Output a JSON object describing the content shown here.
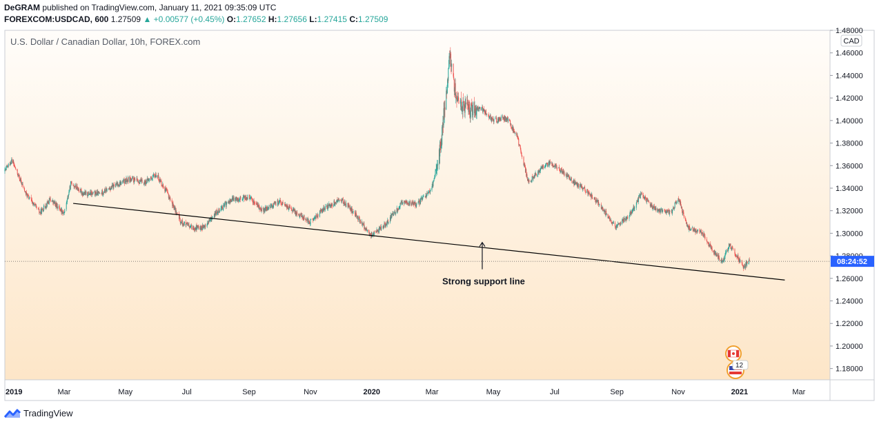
{
  "header": {
    "publisher": "DeGRAM",
    "publisher_suffix": "published on TradingView.com, January 11, 2021 09:35:09 UTC",
    "symbol": "FOREXCOM:USDCAD, 600",
    "last": "1.27509",
    "arrow": "▲",
    "change": "+0.00577 (+0.45%)",
    "o_label": "O:",
    "o": "1.27652",
    "h_label": "H:",
    "h": "1.27656",
    "l_label": "L:",
    "l": "1.27415",
    "c_label": "C:",
    "c": "1.27509"
  },
  "chart_data": {
    "type": "candlestick",
    "title": "U.S. Dollar / Canadian Dollar, 10h, FOREX.com",
    "currency_badge": "CAD",
    "x_ticks": [
      "2019",
      "Mar",
      "May",
      "Jul",
      "Sep",
      "Nov",
      "2020",
      "Mar",
      "May",
      "Jul",
      "Sep",
      "Nov",
      "2021",
      "Mar"
    ],
    "y_ticks": [
      "1.48000",
      "1.46000",
      "1.44000",
      "1.42000",
      "1.40000",
      "1.38000",
      "1.36000",
      "1.34000",
      "1.32000",
      "1.30000",
      "1.28000",
      "1.26000",
      "1.24000",
      "1.22000",
      "1.20000",
      "1.18000"
    ],
    "ylim": [
      1.17,
      1.48
    ],
    "x_domain": [
      "2019-01-01",
      "2021-04-01"
    ],
    "price_path": [
      [
        "2019-01-01",
        1.355
      ],
      [
        "2019-01-08",
        1.365
      ],
      [
        "2019-01-22",
        1.335
      ],
      [
        "2019-02-05",
        1.318
      ],
      [
        "2019-02-15",
        1.33
      ],
      [
        "2019-03-01",
        1.318
      ],
      [
        "2019-03-08",
        1.345
      ],
      [
        "2019-03-20",
        1.335
      ],
      [
        "2019-04-05",
        1.335
      ],
      [
        "2019-04-20",
        1.342
      ],
      [
        "2019-05-05",
        1.348
      ],
      [
        "2019-05-20",
        1.345
      ],
      [
        "2019-06-01",
        1.352
      ],
      [
        "2019-06-12",
        1.335
      ],
      [
        "2019-06-25",
        1.31
      ],
      [
        "2019-07-05",
        1.305
      ],
      [
        "2019-07-18",
        1.305
      ],
      [
        "2019-08-01",
        1.32
      ],
      [
        "2019-08-15",
        1.33
      ],
      [
        "2019-09-01",
        1.332
      ],
      [
        "2019-09-15",
        1.32
      ],
      [
        "2019-10-01",
        1.328
      ],
      [
        "2019-10-15",
        1.32
      ],
      [
        "2019-11-01",
        1.31
      ],
      [
        "2019-11-15",
        1.322
      ],
      [
        "2019-12-01",
        1.33
      ],
      [
        "2019-12-15",
        1.318
      ],
      [
        "2019-12-31",
        1.298
      ],
      [
        "2020-01-15",
        1.308
      ],
      [
        "2020-02-01",
        1.328
      ],
      [
        "2020-02-15",
        1.325
      ],
      [
        "2020-03-01",
        1.34
      ],
      [
        "2020-03-10",
        1.38
      ],
      [
        "2020-03-19",
        1.46
      ],
      [
        "2020-03-25",
        1.42
      ],
      [
        "2020-04-05",
        1.41
      ],
      [
        "2020-04-20",
        1.41
      ],
      [
        "2020-05-01",
        1.4
      ],
      [
        "2020-05-15",
        1.402
      ],
      [
        "2020-05-25",
        1.385
      ],
      [
        "2020-06-05",
        1.345
      ],
      [
        "2020-06-15",
        1.355
      ],
      [
        "2020-06-25",
        1.362
      ],
      [
        "2020-07-05",
        1.358
      ],
      [
        "2020-07-20",
        1.345
      ],
      [
        "2020-08-01",
        1.338
      ],
      [
        "2020-08-15",
        1.325
      ],
      [
        "2020-08-31",
        1.305
      ],
      [
        "2020-09-15",
        1.318
      ],
      [
        "2020-09-25",
        1.335
      ],
      [
        "2020-10-10",
        1.32
      ],
      [
        "2020-10-25",
        1.318
      ],
      [
        "2020-11-01",
        1.332
      ],
      [
        "2020-11-10",
        1.305
      ],
      [
        "2020-11-25",
        1.3
      ],
      [
        "2020-12-05",
        1.285
      ],
      [
        "2020-12-15",
        1.275
      ],
      [
        "2020-12-22",
        1.29
      ],
      [
        "2021-01-05",
        1.27
      ],
      [
        "2021-01-11",
        1.275
      ]
    ],
    "trendline": {
      "start": [
        "2019-03-10",
        1.3265
      ],
      "end": [
        "2021-02-15",
        1.2585
      ]
    },
    "annotation": {
      "text": "Strong support line",
      "arrow_at": [
        "2020-04-20",
        1.2925
      ]
    },
    "last_price": 1.27509,
    "countdown": "08:24:52",
    "event_badge": "12",
    "colors": {
      "up": "#26a69a",
      "down": "#ef5350",
      "countdown_bg": "#2962ff",
      "trendline": "#000000"
    }
  },
  "footer": {
    "brand": "TradingView"
  }
}
